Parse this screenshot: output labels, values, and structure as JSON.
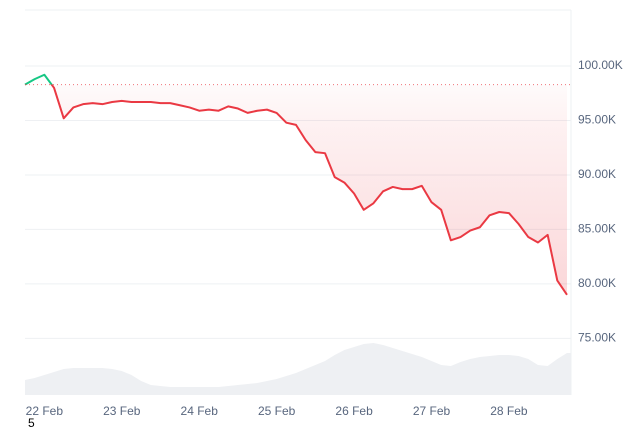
{
  "chart_data": {
    "type": "line",
    "categories": [
      null,
      null,
      "22 Feb",
      null,
      null,
      null,
      null,
      null,
      null,
      null,
      "23 Feb",
      null,
      null,
      null,
      null,
      null,
      null,
      null,
      "24 Feb",
      null,
      null,
      null,
      null,
      null,
      null,
      null,
      "25 Feb",
      null,
      null,
      null,
      null,
      null,
      null,
      null,
      "26 Feb",
      null,
      null,
      null,
      null,
      null,
      null,
      null,
      "27 Feb",
      null,
      null,
      null,
      null,
      null,
      null,
      null,
      "28 Feb",
      null,
      null,
      null,
      null,
      null,
      null
    ],
    "values": [
      98300,
      98800,
      99200,
      98000,
      95200,
      96200,
      96500,
      96600,
      96500,
      96700,
      96800,
      96700,
      96700,
      96700,
      96600,
      96600,
      96400,
      96200,
      95900,
      96000,
      95900,
      96300,
      96100,
      95700,
      95900,
      96000,
      95700,
      94800,
      94600,
      93200,
      92100,
      92000,
      89800,
      89300,
      88300,
      86800,
      87400,
      88500,
      88900,
      88700,
      88700,
      89000,
      87500,
      86800,
      84000,
      84300,
      84900,
      85200,
      86300,
      86600,
      86500,
      85500,
      84300,
      83800,
      84500,
      80300,
      79000
    ],
    "baseline": 98300,
    "up_color": "#16c784",
    "down_color": "#ea3943",
    "volume": {
      "color": "#eef0f3",
      "values": [
        15,
        17,
        20,
        23,
        26,
        27,
        27,
        27,
        27,
        26,
        24,
        20,
        14,
        10,
        9,
        8,
        8,
        8,
        8,
        8,
        8,
        9,
        10,
        11,
        12,
        14,
        16,
        19,
        22,
        26,
        30,
        34,
        40,
        45,
        48,
        51,
        52,
        50,
        47,
        44,
        41,
        38,
        34,
        30,
        29,
        33,
        36,
        38,
        39,
        40,
        40,
        39,
        36,
        30,
        29,
        36,
        42
      ]
    },
    "ylim": [
      70000,
      105000
    ],
    "yticks": [
      {
        "value": 75000,
        "label": "75.00K"
      },
      {
        "value": 80000,
        "label": "80.00K"
      },
      {
        "value": 85000,
        "label": "85.00K"
      },
      {
        "value": 90000,
        "label": "90.00K"
      },
      {
        "value": 95000,
        "label": "95.00K"
      },
      {
        "value": 100000,
        "label": "100.00K"
      }
    ],
    "grid": true,
    "footnote": "5"
  }
}
